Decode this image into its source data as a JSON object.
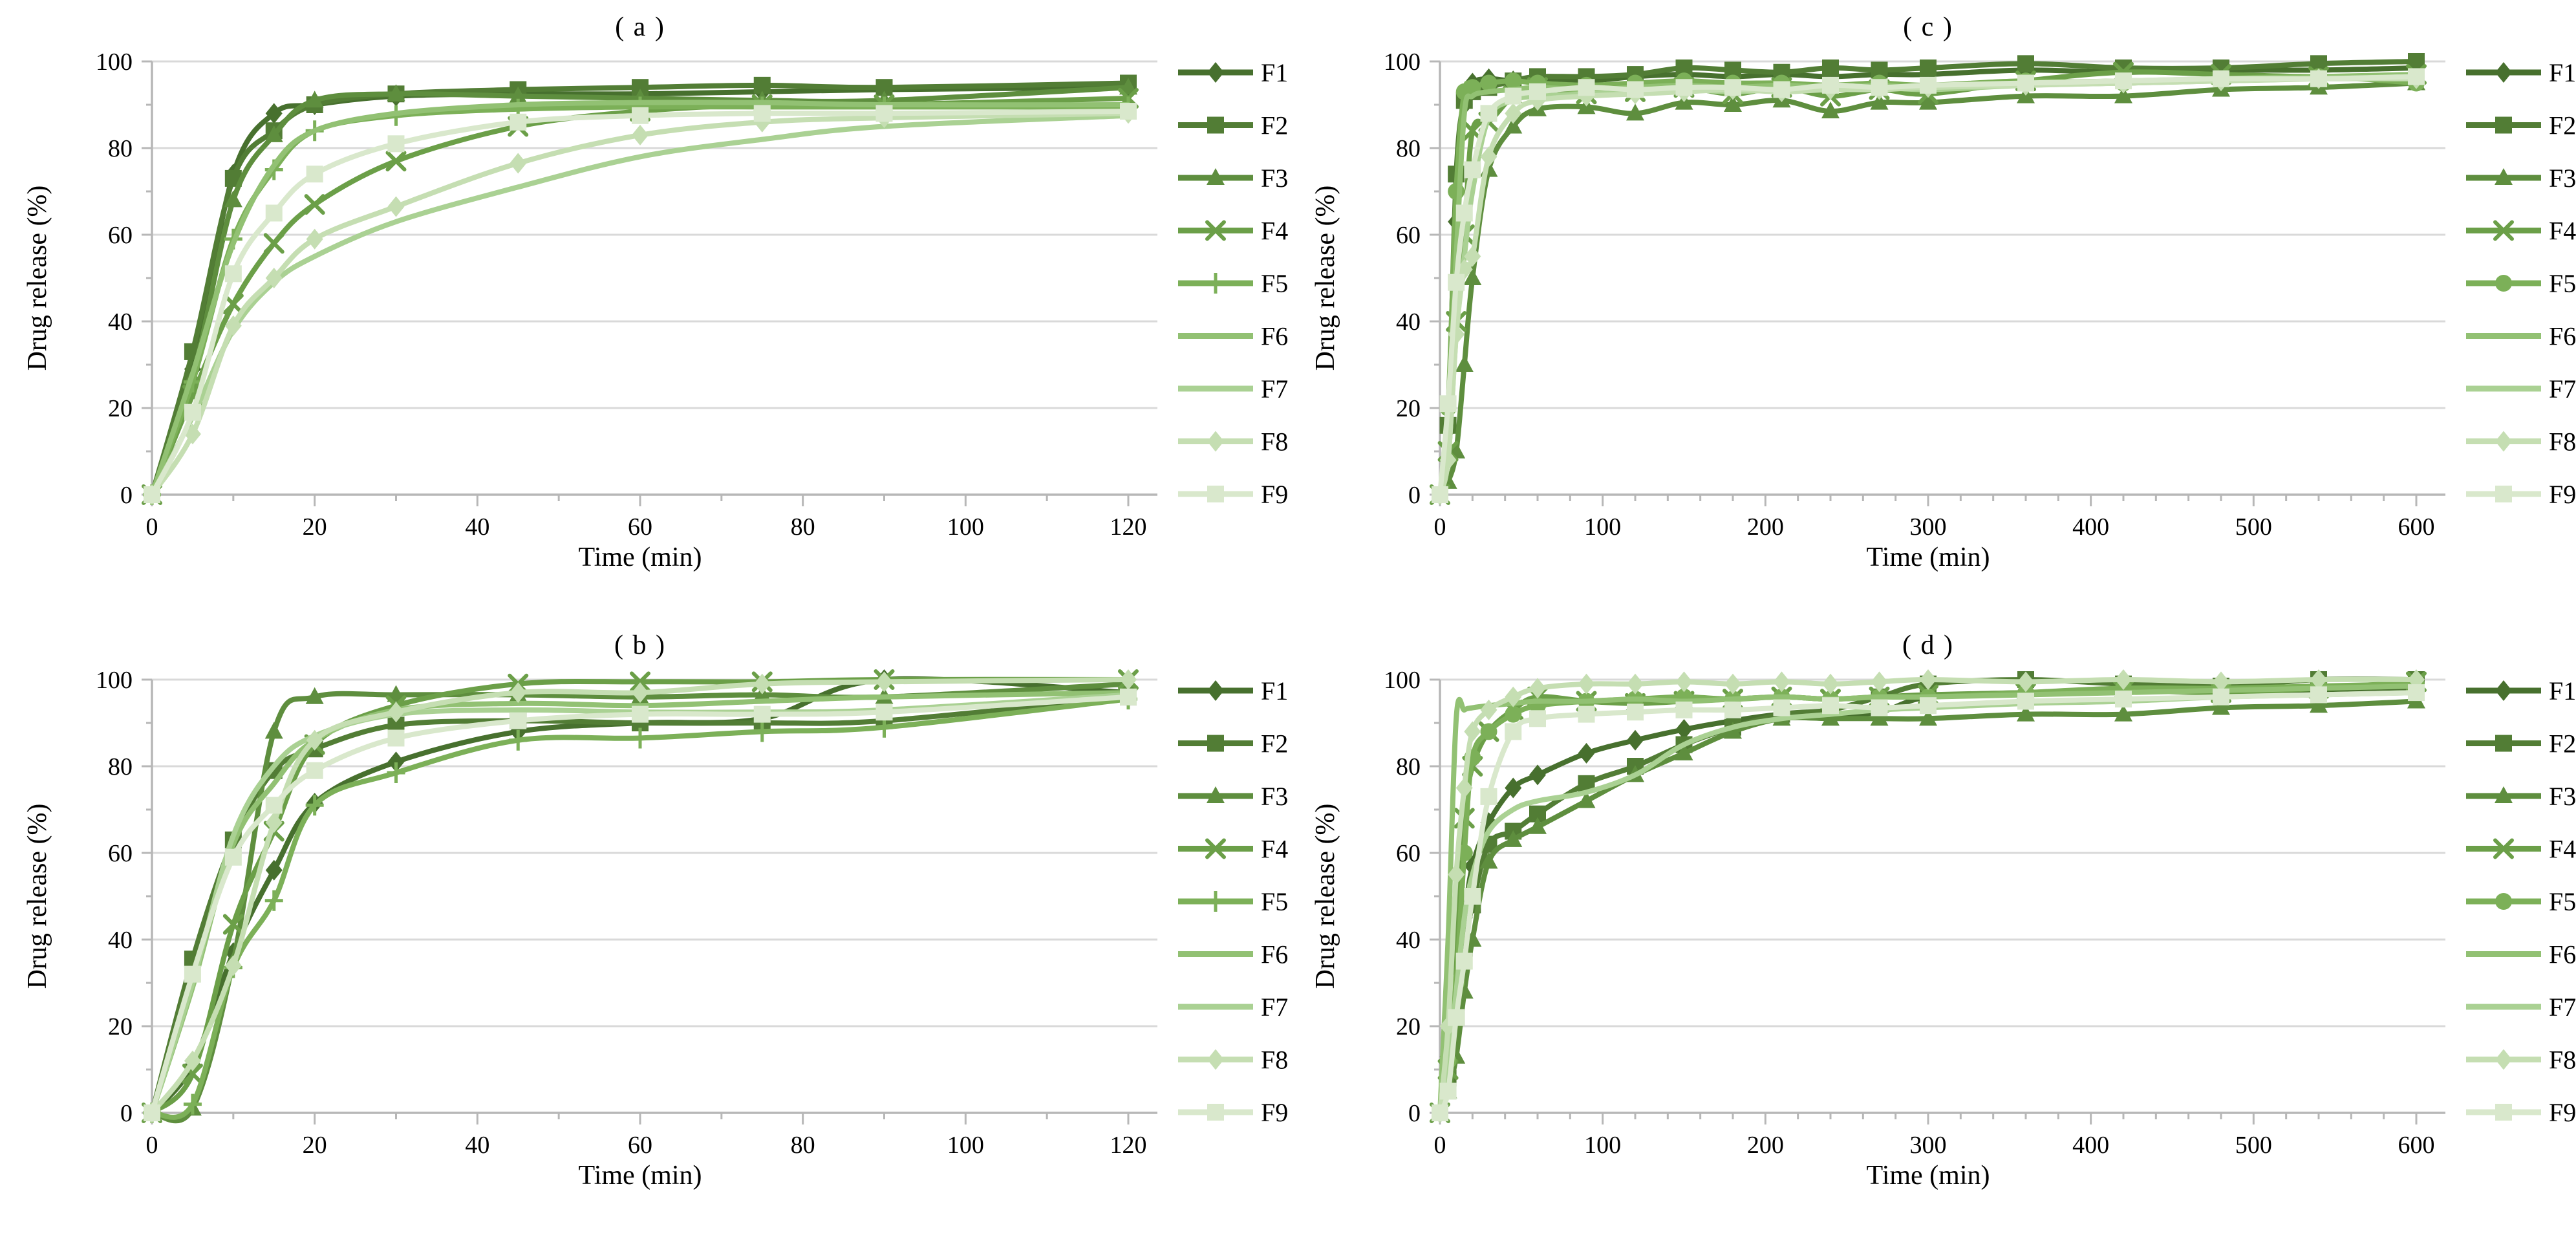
{
  "figure": {
    "background": "#ffffff",
    "panel_titles": [
      "( a )",
      "( b )",
      "( c )",
      "( d )"
    ]
  },
  "style": {
    "grid_color": "#d9d9d9",
    "axis_color": "#b7b7b7",
    "text_color": "#000000",
    "series_colors": [
      "#47702e",
      "#527d35",
      "#5e8e3e",
      "#6b9f48",
      "#7cb058",
      "#92c173",
      "#aad193",
      "#c5deb2",
      "#d9e8cc"
    ]
  },
  "chart_data": [
    {
      "type": "line",
      "title": "( a )",
      "xlabel": "Time (min)",
      "ylabel": "Drug release (%)",
      "xlim": [
        0,
        120
      ],
      "ylim": [
        0,
        100
      ],
      "xticks": [
        0,
        20,
        40,
        60,
        80,
        100,
        120
      ],
      "yticks": [
        0,
        20,
        40,
        60,
        80,
        100
      ],
      "x_minor_step": 10,
      "y_minor_step": 10,
      "grid": "horizontal",
      "legend_position": "right",
      "x": [
        0,
        5,
        10,
        15,
        20,
        30,
        45,
        60,
        75,
        90,
        120
      ],
      "series": [
        {
          "name": "F1",
          "color": "#47702e",
          "marker": "diamond",
          "values": [
            0,
            29,
            74,
            88,
            90,
            92,
            92.5,
            92.5,
            93,
            93.5,
            94
          ]
        },
        {
          "name": "F2",
          "color": "#527d35",
          "marker": "square",
          "values": [
            0,
            33,
            73,
            84,
            90,
            92.5,
            93.5,
            94,
            94.5,
            94,
            95
          ]
        },
        {
          "name": "F3",
          "color": "#5e8e3e",
          "marker": "triangle",
          "values": [
            0,
            27,
            68,
            83,
            91,
            92.5,
            92,
            91.5,
            91,
            91,
            94
          ]
        },
        {
          "name": "F4",
          "color": "#6b9f48",
          "marker": "x",
          "values": [
            0,
            23,
            44,
            58,
            67,
            77,
            85,
            88.5,
            90,
            90,
            91.5
          ]
        },
        {
          "name": "F5",
          "color": "#7cb058",
          "marker": "plus",
          "values": [
            0,
            26,
            59,
            75,
            84,
            87.5,
            89,
            89.5,
            89.5,
            89.5,
            89.5
          ]
        },
        {
          "name": "F6",
          "color": "#92c173",
          "marker": "none",
          "values": [
            0,
            28,
            58,
            76,
            84,
            88,
            90,
            90.5,
            90.5,
            90,
            90
          ]
        },
        {
          "name": "F7",
          "color": "#aad193",
          "marker": "none",
          "values": [
            0,
            18,
            38,
            49,
            55,
            63,
            71,
            78,
            82,
            85,
            87.5
          ]
        },
        {
          "name": "F8",
          "color": "#c5deb2",
          "marker": "diamond",
          "values": [
            0,
            14,
            39,
            50,
            59,
            66.5,
            76.5,
            83,
            86,
            87,
            88
          ]
        },
        {
          "name": "F9",
          "color": "#d9e8cc",
          "marker": "square",
          "values": [
            0,
            19,
            51,
            65,
            74,
            81,
            86,
            87.5,
            88,
            88,
            88.5
          ]
        }
      ]
    },
    {
      "type": "line",
      "title": "( b )",
      "xlabel": "Time (min)",
      "ylabel": "Drug release (%)",
      "xlim": [
        0,
        120
      ],
      "ylim": [
        0,
        100
      ],
      "xticks": [
        0,
        20,
        40,
        60,
        80,
        100,
        120
      ],
      "yticks": [
        0,
        20,
        40,
        60,
        80,
        100
      ],
      "x_minor_step": 10,
      "y_minor_step": 10,
      "grid": "horizontal",
      "legend_position": "right",
      "x": [
        0,
        5,
        10,
        15,
        20,
        30,
        45,
        60,
        75,
        90,
        120
      ],
      "series": [
        {
          "name": "F1",
          "color": "#47702e",
          "marker": "diamond",
          "values": [
            0,
            11,
            37,
            56,
            71.5,
            81,
            88,
            90,
            91,
            100,
            97
          ]
        },
        {
          "name": "F2",
          "color": "#527d35",
          "marker": "square",
          "values": [
            0,
            35.5,
            63,
            79,
            84,
            89.5,
            90.5,
            90,
            90,
            90.5,
            96
          ]
        },
        {
          "name": "F3",
          "color": "#5e8e3e",
          "marker": "triangle",
          "values": [
            0,
            1,
            35,
            88,
            96,
            96.5,
            96.5,
            96,
            96.5,
            96,
            99
          ]
        },
        {
          "name": "F4",
          "color": "#6b9f48",
          "marker": "x",
          "values": [
            0,
            9,
            43.5,
            65,
            85,
            94,
            99,
            99.5,
            99.5,
            100,
            100
          ]
        },
        {
          "name": "F5",
          "color": "#7cb058",
          "marker": "plus",
          "values": [
            0,
            2,
            33.5,
            49,
            71,
            78.5,
            86,
            86.5,
            88,
            89,
            95.5
          ]
        },
        {
          "name": "F6",
          "color": "#92c173",
          "marker": "none",
          "values": [
            0,
            29,
            62,
            76,
            86,
            93,
            94.5,
            94,
            95,
            96,
            97
          ]
        },
        {
          "name": "F7",
          "color": "#aad193",
          "marker": "none",
          "values": [
            0,
            30,
            64,
            80,
            87,
            92,
            93,
            92.5,
            92.5,
            93,
            96.5
          ]
        },
        {
          "name": "F8",
          "color": "#c5deb2",
          "marker": "diamond",
          "values": [
            0,
            12,
            34,
            67,
            86,
            92.5,
            97,
            97,
            99,
            99.5,
            100
          ]
        },
        {
          "name": "F9",
          "color": "#d9e8cc",
          "marker": "square",
          "values": [
            0,
            32,
            59,
            71,
            79,
            86.5,
            90.5,
            92,
            92,
            92.5,
            96
          ]
        }
      ]
    },
    {
      "type": "line",
      "title": "( c )",
      "xlabel": "Time (min)",
      "ylabel": "Drug release (%)",
      "xlim": [
        0,
        600
      ],
      "ylim": [
        0,
        100
      ],
      "xticks": [
        0,
        100,
        200,
        300,
        400,
        500,
        600
      ],
      "yticks": [
        0,
        20,
        40,
        60,
        80,
        100
      ],
      "x_minor_step": 20,
      "y_minor_step": 10,
      "grid": "horizontal",
      "legend_position": "right",
      "x": [
        0,
        5,
        10,
        15,
        20,
        30,
        45,
        60,
        90,
        120,
        150,
        180,
        210,
        240,
        270,
        300,
        360,
        420,
        480,
        540,
        600
      ],
      "series": [
        {
          "name": "F1",
          "color": "#47702e",
          "marker": "diamond",
          "values": [
            0,
            15,
            63,
            90,
            95,
            96,
            95.5,
            96,
            95.5,
            96.5,
            97,
            96.5,
            97,
            96.5,
            97,
            97,
            98,
            97.5,
            98,
            98,
            98.5
          ]
        },
        {
          "name": "F2",
          "color": "#527d35",
          "marker": "square",
          "values": [
            0,
            16,
            74,
            91,
            93,
            94,
            95.5,
            96.5,
            96.5,
            97,
            98.5,
            98,
            97.5,
            98.5,
            98,
            98.5,
            99.5,
            98.5,
            98.5,
            99.5,
            100
          ]
        },
        {
          "name": "F3",
          "color": "#5e8e3e",
          "marker": "triangle",
          "values": [
            0,
            3,
            10,
            30,
            50,
            75,
            85,
            89,
            89.5,
            88,
            90.5,
            90,
            91,
            88.5,
            90.5,
            90.5,
            92,
            92,
            93.5,
            94,
            95
          ]
        },
        {
          "name": "F4",
          "color": "#6b9f48",
          "marker": "x",
          "values": [
            0,
            10,
            40,
            60,
            84,
            86,
            92,
            94,
            92.5,
            93,
            94,
            92.5,
            94,
            92,
            93.5,
            92.5,
            95.5,
            97.5,
            97,
            96.5,
            97
          ]
        },
        {
          "name": "F5",
          "color": "#7cb058",
          "marker": "circle",
          "values": [
            0,
            20,
            70,
            93,
            94,
            95,
            95.5,
            95,
            94.5,
            95,
            95.5,
            95,
            95,
            94.5,
            95,
            94.5,
            95.5,
            95,
            96,
            96.5,
            95
          ]
        },
        {
          "name": "F6",
          "color": "#92c173",
          "marker": "none",
          "values": [
            0,
            18,
            55,
            88,
            92,
            93,
            93.5,
            94,
            93.5,
            94,
            94.5,
            94,
            94.5,
            94,
            94.5,
            94,
            95,
            95.5,
            96,
            96.5,
            97
          ]
        },
        {
          "name": "F7",
          "color": "#aad193",
          "marker": "none",
          "values": [
            0,
            8,
            37,
            55,
            70,
            87,
            91,
            92,
            92.5,
            93,
            93.5,
            93,
            93.5,
            93.5,
            94,
            93.5,
            94.5,
            95,
            95.5,
            96,
            96.5
          ]
        },
        {
          "name": "F8",
          "color": "#c5deb2",
          "marker": "diamond",
          "values": [
            0,
            8,
            37,
            52,
            55,
            78,
            88,
            91,
            92,
            92.5,
            93,
            93.5,
            93,
            93.5,
            93.5,
            94,
            94.5,
            95,
            95.5,
            96,
            96
          ]
        },
        {
          "name": "F9",
          "color": "#d9e8cc",
          "marker": "square",
          "values": [
            0,
            21,
            49,
            65,
            75,
            88,
            92,
            93,
            94,
            93.5,
            94,
            94,
            93.5,
            94.5,
            94,
            94.5,
            95,
            95.5,
            96,
            96,
            96.5
          ]
        }
      ]
    },
    {
      "type": "line",
      "title": "( d )",
      "xlabel": "Time (min)",
      "ylabel": "Drug release (%)",
      "xlim": [
        0,
        600
      ],
      "ylim": [
        0,
        100
      ],
      "xticks": [
        0,
        100,
        200,
        300,
        400,
        500,
        600
      ],
      "yticks": [
        0,
        20,
        40,
        60,
        80,
        100
      ],
      "x_minor_step": 20,
      "y_minor_step": 10,
      "grid": "horizontal",
      "legend_position": "right",
      "x": [
        0,
        5,
        10,
        15,
        20,
        30,
        45,
        60,
        90,
        120,
        150,
        180,
        210,
        240,
        270,
        300,
        360,
        420,
        480,
        540,
        600
      ],
      "series": [
        {
          "name": "F1",
          "color": "#47702e",
          "marker": "diamond",
          "values": [
            0,
            13,
            30,
            45,
            57,
            67,
            75,
            78,
            83,
            86,
            88.5,
            90.5,
            92,
            92,
            92.5,
            96,
            97,
            97.5,
            97,
            97.5,
            98
          ]
        },
        {
          "name": "F2",
          "color": "#527d35",
          "marker": "square",
          "values": [
            0,
            8,
            22,
            38,
            48,
            62,
            65,
            69,
            76,
            80,
            85,
            89,
            92,
            93,
            96,
            99,
            100,
            99,
            98.5,
            100,
            100
          ]
        },
        {
          "name": "F3",
          "color": "#5e8e3e",
          "marker": "triangle",
          "values": [
            0,
            5,
            13,
            28,
            40,
            58,
            63,
            66,
            72,
            78,
            83,
            88,
            91,
            91,
            91,
            91,
            92,
            92,
            93.5,
            94,
            95
          ]
        },
        {
          "name": "F4",
          "color": "#6b9f48",
          "marker": "x",
          "values": [
            0,
            10,
            38,
            68,
            80,
            88,
            93,
            96,
            95,
            94.5,
            95,
            95.5,
            96,
            95.5,
            96,
            96.5,
            97,
            97.5,
            97,
            98,
            99.5
          ]
        },
        {
          "name": "F5",
          "color": "#7cb058",
          "marker": "circle",
          "values": [
            0,
            12,
            30,
            60,
            82,
            88,
            92,
            94,
            95,
            95.5,
            96,
            95.5,
            96,
            95.5,
            96,
            96,
            97,
            98,
            98,
            98.5,
            99
          ]
        },
        {
          "name": "F6",
          "color": "#92c173",
          "marker": "none",
          "values": [
            0,
            40,
            91,
            93,
            93.5,
            94,
            94.5,
            95,
            95,
            95.5,
            95,
            95.5,
            96,
            95.5,
            96,
            96,
            96.5,
            97,
            97.5,
            98,
            98.5
          ]
        },
        {
          "name": "F7",
          "color": "#aad193",
          "marker": "none",
          "values": [
            0,
            10,
            28,
            45,
            55,
            65,
            70,
            72,
            74,
            78,
            85,
            89,
            91,
            92,
            93,
            93.5,
            94.5,
            95,
            96,
            96.5,
            97
          ]
        },
        {
          "name": "F8",
          "color": "#c5deb2",
          "marker": "diamond",
          "values": [
            0,
            20,
            55,
            75,
            88,
            93,
            96,
            98,
            99,
            99,
            99.5,
            99,
            99.5,
            99,
            99.5,
            100,
            99.5,
            100,
            99.5,
            100,
            100
          ]
        },
        {
          "name": "F9",
          "color": "#d9e8cc",
          "marker": "square",
          "values": [
            0,
            5,
            22,
            35,
            50,
            73,
            88,
            91,
            92,
            92.5,
            93,
            93,
            93.5,
            94,
            93.5,
            94,
            95,
            95.5,
            96,
            96.5,
            97
          ]
        }
      ]
    }
  ]
}
